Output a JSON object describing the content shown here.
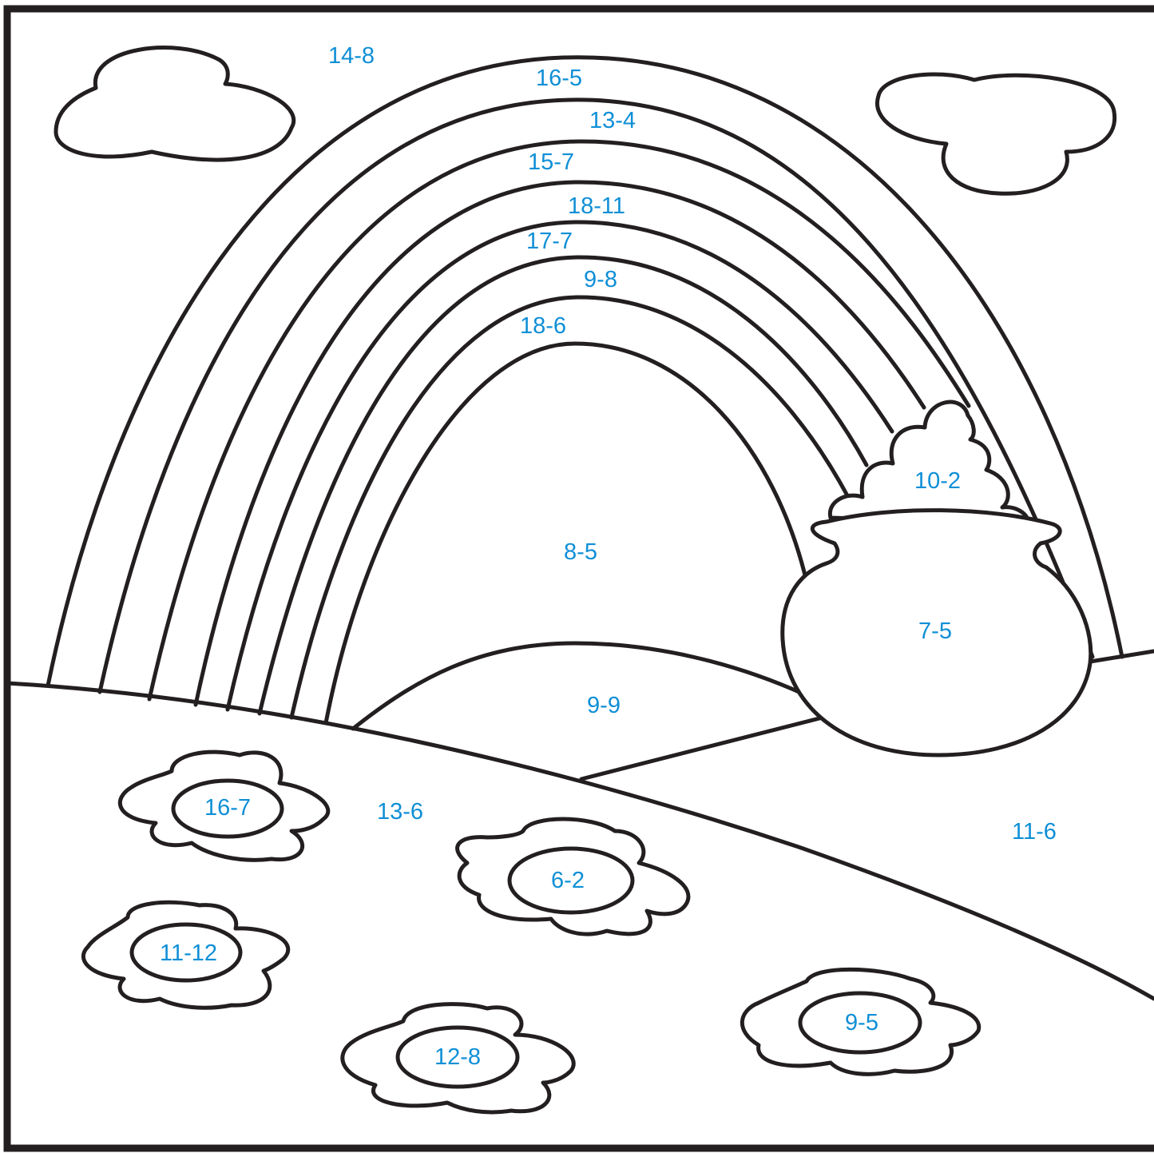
{
  "colors": {
    "label": "#0f8fd6",
    "outline": "#231f20",
    "paper": "#ffffff"
  },
  "regions": {
    "sky": "14-8",
    "band_1": "16-5",
    "band_2": "13-4",
    "band_3": "15-7",
    "band_4": "18-11",
    "band_5": "17-7",
    "band_6": "9-8",
    "band_7": "18-6",
    "inner_sky": "8-5",
    "gold": "10-2",
    "pot": "7-5",
    "hill": "9-9",
    "grass_left": "13-6",
    "grass_right": "11-6"
  },
  "flowers": [
    "16-7",
    "6-2",
    "11-12",
    "12-8",
    "9-5"
  ]
}
